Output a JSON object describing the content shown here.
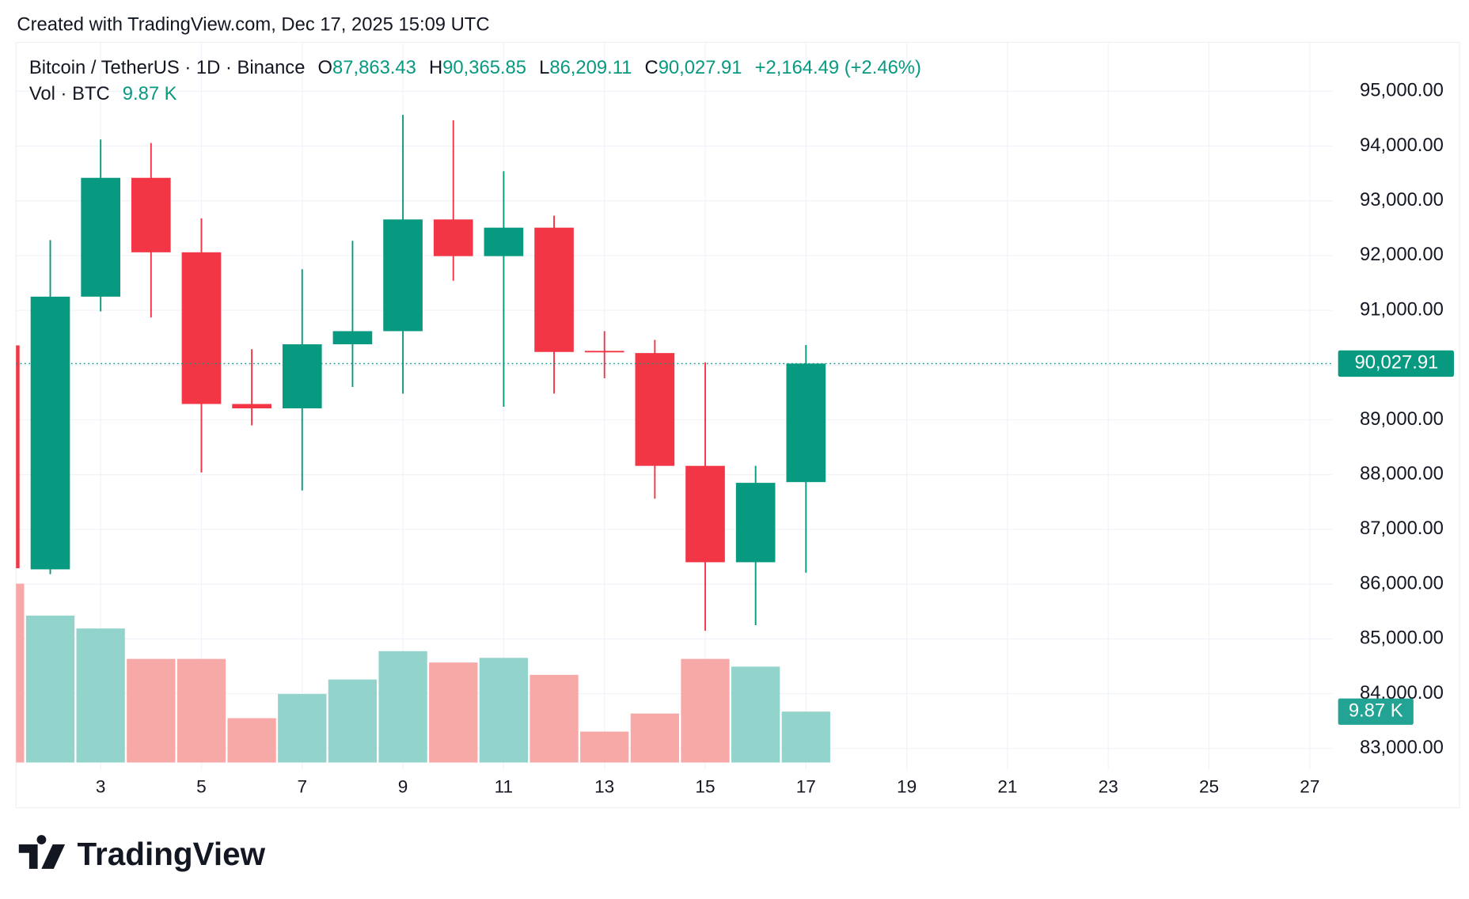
{
  "header": {
    "created": "Created with TradingView.com, Dec 17, 2025 15:09 UTC"
  },
  "chart_data": {
    "type": "candlestick",
    "title": "Bitcoin / TetherUS · 1D · Binance",
    "labels": {
      "open": "O",
      "high": "H",
      "low": "L",
      "close": "C"
    },
    "change_label": "+2,164.49 (+2.46%)",
    "x": [
      1,
      2,
      3,
      4,
      5,
      6,
      7,
      8,
      9,
      10,
      11,
      12,
      13,
      14,
      15,
      16,
      17
    ],
    "xlim": [
      1.32,
      27.45
    ],
    "xticks": [
      3,
      5,
      7,
      9,
      11,
      13,
      15,
      17,
      19,
      21,
      23,
      25,
      27
    ],
    "open": [
      90360,
      86270,
      91250,
      93420,
      92060,
      89290,
      89210,
      90380,
      90620,
      92660,
      91990,
      92510,
      90260,
      90220,
      88160,
      86400,
      87863.43
    ],
    "high": [
      90400,
      92284,
      94120,
      94055,
      92680,
      90290,
      91750,
      92270,
      94570,
      94470,
      93540,
      92730,
      90620,
      90460,
      90050,
      88160,
      90365.85
    ],
    "low": [
      86100,
      86180,
      90980,
      90870,
      88040,
      88900,
      87710,
      89600,
      89480,
      91540,
      89240,
      89480,
      89760,
      87560,
      85150,
      85250,
      86209.11
    ],
    "close": [
      86290,
      91250,
      93420,
      92060,
      89290,
      89210,
      90380,
      90620,
      92660,
      91990,
      92510,
      90240,
      90250,
      88160,
      86400,
      87850,
      90027.91
    ],
    "value_labels": {
      "open": "87,863.43",
      "high": "90,365.85",
      "low": "86,209.11",
      "close": "90,027.91"
    },
    "up_color": "#089981",
    "down_color": "#f23645",
    "ylim": [
      82605,
      95894
    ],
    "yticks": [
      {
        "value": 83000,
        "label": "83,000.00"
      },
      {
        "value": 84000,
        "label": "84,000.00"
      },
      {
        "value": 85000,
        "label": "85,000.00"
      },
      {
        "value": 86000,
        "label": "86,000.00"
      },
      {
        "value": 87000,
        "label": "87,000.00"
      },
      {
        "value": 88000,
        "label": "88,000.00"
      },
      {
        "value": 89000,
        "label": "89,000.00"
      },
      {
        "value": 90000,
        "label": "90,000.00"
      },
      {
        "value": 91000,
        "label": "91,000.00"
      },
      {
        "value": 92000,
        "label": "92,000.00"
      },
      {
        "value": 93000,
        "label": "93,000.00"
      },
      {
        "value": 94000,
        "label": "94,000.00"
      },
      {
        "value": 95000,
        "label": "95,000.00"
      }
    ],
    "grid": true,
    "price_line": true,
    "volume": {
      "name": "Vol · BTC",
      "values": [
        34700,
        28500,
        26000,
        20100,
        20100,
        8600,
        13300,
        16100,
        21600,
        19400,
        20300,
        17000,
        6000,
        9500,
        20100,
        18600,
        9870
      ],
      "value_label": "9.87 K",
      "up_color": "#92d3cb",
      "down_color": "#f7a9a7",
      "tag_color": "#22a393"
    }
  },
  "footer": {
    "logo": "TradingView"
  }
}
